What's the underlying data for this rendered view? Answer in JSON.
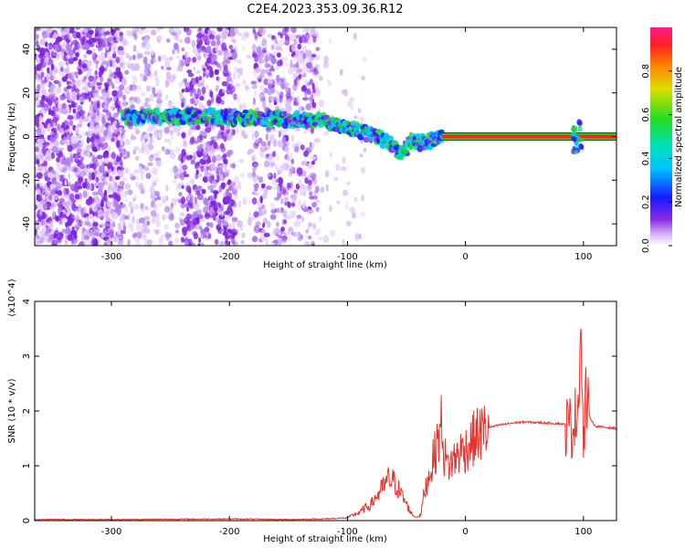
{
  "title": "C2E4.2023.353.09.36.R12",
  "chart_data": [
    {
      "type": "heatmap",
      "xlabel": "Height of straight line (km)",
      "ylabel": "Frequency (Hz)",
      "xlim": [
        -365,
        128
      ],
      "ylim": [
        -50,
        50
      ],
      "xticks": [
        -300,
        -200,
        -100,
        0,
        100
      ],
      "yticks": [
        -40,
        -20,
        0,
        20,
        40
      ],
      "colorbar": {
        "label": "Normalized spectral amplitude",
        "range": [
          0,
          1
        ],
        "ticks": [
          0.0,
          0.2,
          0.4,
          0.6,
          0.8
        ]
      },
      "ridge_frequency": [
        {
          "x": -290,
          "y": 9
        },
        {
          "x": -250,
          "y": 9
        },
        {
          "x": -200,
          "y": 9
        },
        {
          "x": -150,
          "y": 8
        },
        {
          "x": -120,
          "y": 7
        },
        {
          "x": -100,
          "y": 4
        },
        {
          "x": -80,
          "y": 1
        },
        {
          "x": -65,
          "y": -3
        },
        {
          "x": -55,
          "y": -8
        },
        {
          "x": -45,
          "y": -2
        },
        {
          "x": -35,
          "y": -3
        },
        {
          "x": -20,
          "y": 1
        },
        {
          "x": 0,
          "y": 0
        },
        {
          "x": 50,
          "y": 0
        },
        {
          "x": 95,
          "y": 0
        },
        {
          "x": 125,
          "y": 0
        }
      ],
      "grid": false
    },
    {
      "type": "line",
      "xlabel": "Height of straight line (km)",
      "ylabel": "SNR (10 * v/v)",
      "yscale_note": "(x10^4)",
      "xlim": [
        -365,
        128
      ],
      "ylim": [
        0,
        4
      ],
      "xticks": [
        -300,
        -200,
        -100,
        0,
        100
      ],
      "yticks": [
        0,
        1,
        2,
        3,
        4
      ],
      "series": [
        {
          "color": "#e8322e",
          "x": [
            -365,
            -300,
            -200,
            -150,
            -120,
            -100,
            -90,
            -80,
            -70,
            -65,
            -60,
            -55,
            -50,
            -45,
            -42,
            -38,
            -35,
            -30,
            -25,
            -20,
            -18,
            -15,
            -10,
            -5,
            0,
            5,
            10,
            20,
            30,
            40,
            50,
            60,
            70,
            80,
            85,
            90,
            95,
            98,
            100,
            102,
            105,
            110,
            120,
            128
          ],
          "values": [
            0.02,
            0.02,
            0.03,
            0.02,
            0.03,
            0.05,
            0.15,
            0.3,
            0.6,
            0.75,
            0.7,
            0.5,
            0.3,
            0.1,
            0.06,
            0.1,
            0.5,
            0.9,
            1.3,
            1.8,
            1.2,
            1.0,
            1.1,
            1.25,
            1.3,
            1.45,
            1.55,
            1.7,
            1.75,
            1.78,
            1.8,
            1.79,
            1.78,
            1.77,
            1.75,
            1.7,
            2.0,
            3.5,
            1.2,
            2.3,
            1.9,
            1.72,
            1.7,
            1.68
          ]
        }
      ],
      "grid": false
    }
  ]
}
